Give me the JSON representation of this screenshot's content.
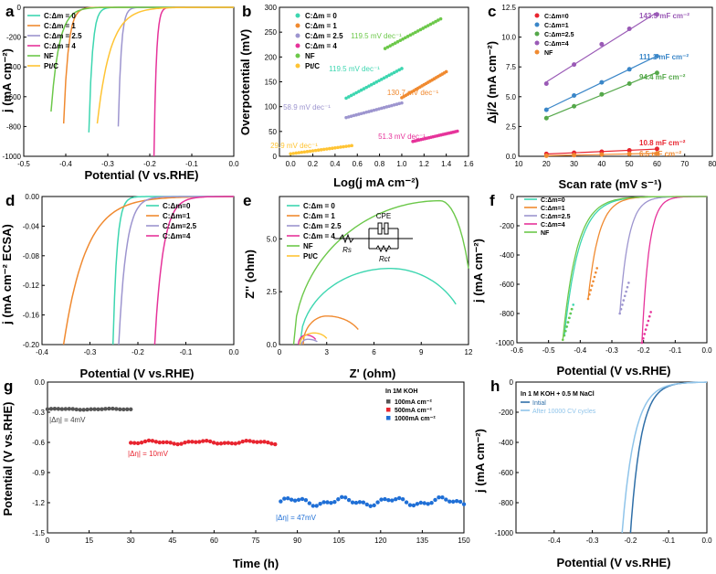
{
  "chart_data": [
    {
      "id": "a",
      "type": "line",
      "panel_label": "a",
      "xlabel": "Potential (V vs.RHE)",
      "ylabel": "j (mA cm⁻²)",
      "xlim": [
        -0.5,
        0.0
      ],
      "ylim": [
        -1000,
        0
      ],
      "xticks": [
        "-0.5",
        "-0.4",
        "-0.3",
        "-0.2",
        "-0.1",
        "0.0"
      ],
      "yticks": [
        "0",
        "-200",
        "-400",
        "-600",
        "-800",
        "-1000"
      ],
      "legend": "top-left",
      "series": [
        {
          "name": "C:Δm = 0",
          "color": "#3dd6b0",
          "curve": [
            -0.345,
            -840,
            0.05,
            6.0
          ]
        },
        {
          "name": "C:Δm = 1",
          "color": "#f08a30",
          "curve": [
            -0.405,
            -780,
            0.06,
            5.5
          ]
        },
        {
          "name": "C:Δm = 2.5",
          "color": "#9d95cf",
          "curve": [
            -0.275,
            -800,
            0.042,
            6.0
          ]
        },
        {
          "name": "C:Δm = 4",
          "color": "#e6339a",
          "curve": [
            -0.19,
            -1000,
            0.034,
            6.2
          ]
        },
        {
          "name": "NF",
          "color": "#6cc84a",
          "curve": [
            -0.435,
            -700,
            0.08,
            4.2
          ]
        },
        {
          "name": "Pt/C",
          "color": "#ffc434",
          "curve": [
            -0.325,
            -780,
            0.1,
            3.2
          ]
        }
      ]
    },
    {
      "id": "b",
      "type": "scatter",
      "panel_label": "b",
      "xlabel": "Log(j mA cm⁻²)",
      "ylabel": "Overpotential (mV)",
      "xlim": [
        -0.1,
        1.6
      ],
      "ylim": [
        0,
        300
      ],
      "xticks": [
        "0.0",
        "0.2",
        "0.4",
        "0.6",
        "0.8",
        "1.0",
        "1.2",
        "1.4",
        "1.6"
      ],
      "yticks": [
        "0",
        "50",
        "100",
        "150",
        "200",
        "250",
        "300"
      ],
      "legend": "top-left",
      "series": [
        {
          "name": "C:Δm = 0",
          "color": "#3dd6b0",
          "x0": 0.5,
          "x1": 1.0,
          "y0": 117,
          "slope": 119.5,
          "annotation": "119.5 mV dec⁻¹"
        },
        {
          "name": "C:Δm = 1",
          "color": "#f08a30",
          "x0": 1.0,
          "x1": 1.4,
          "y0": 118,
          "slope": 130.7,
          "annotation": "130.7 mV dec⁻¹"
        },
        {
          "name": "C:Δm = 2.5",
          "color": "#9d95cf",
          "x0": 0.5,
          "x1": 1.0,
          "y0": 78,
          "slope": 58.9,
          "annotation": "58.9 mV dec⁻¹"
        },
        {
          "name": "C:Δm = 4",
          "color": "#e6339a",
          "x0": 1.1,
          "x1": 1.5,
          "y0": 30,
          "slope": 51.3,
          "annotation": "51.3 mV dec⁻¹"
        },
        {
          "name": "NF",
          "color": "#6cc84a",
          "x0": 0.85,
          "x1": 1.35,
          "y0": 217,
          "slope": 119.5,
          "annotation": "119.5 mV dec⁻¹"
        },
        {
          "name": "Pt/C",
          "color": "#ffc434",
          "x0": 0.0,
          "x1": 0.55,
          "y0": 5,
          "slope": 29.9,
          "annotation": "29.9 mV dec⁻¹"
        }
      ]
    },
    {
      "id": "c",
      "type": "scatter",
      "panel_label": "c",
      "xlabel": "Scan rate (mV s⁻¹)",
      "ylabel": "Δj/2 (mA cm⁻²)",
      "xlim": [
        10,
        80
      ],
      "ylim": [
        0,
        12.5
      ],
      "xticks": [
        "10",
        "20",
        "30",
        "40",
        "50",
        "60",
        "70",
        "80"
      ],
      "yticks": [
        "0.0",
        "2.5",
        "5.0",
        "7.5",
        "10.0",
        "12.5"
      ],
      "legend": "top-left",
      "x": [
        20,
        30,
        40,
        50,
        60
      ],
      "series": [
        {
          "name": "C:Δm=0",
          "color": "#e8242f",
          "values": [
            0.2,
            0.3,
            0.38,
            0.5,
            0.62
          ],
          "label": "10.8 mF cm⁻²"
        },
        {
          "name": "C:Δm=1",
          "color": "#3a86c8",
          "values": [
            3.9,
            5.1,
            6.2,
            7.3,
            8.4
          ],
          "label": "111.1 mF cm⁻²"
        },
        {
          "name": "C:Δm=2.5",
          "color": "#55a84a",
          "values": [
            3.2,
            4.2,
            5.2,
            6.1,
            7.0
          ],
          "label": "94.4 mF cm⁻²"
        },
        {
          "name": "C:Δm=4",
          "color": "#9a5ab6",
          "values": [
            6.1,
            7.7,
            9.4,
            10.7,
            11.9
          ],
          "label": "143.5 mF cm⁻²"
        },
        {
          "name": "NF",
          "color": "#f08a30",
          "values": [
            0.05,
            0.1,
            0.15,
            0.2,
            0.25
          ],
          "label": "6.5 mF cm⁻²"
        }
      ]
    },
    {
      "id": "d",
      "type": "line",
      "panel_label": "d",
      "xlabel": "Potential (V vs.RHE)",
      "ylabel": "j (mA cm⁻² ECSA)",
      "xlim": [
        -0.4,
        0.0
      ],
      "ylim": [
        -0.2,
        0.0
      ],
      "xticks": [
        "-0.4",
        "-0.3",
        "-0.2",
        "-0.1",
        "0.0"
      ],
      "yticks": [
        "0.00",
        "-0.04",
        "-0.08",
        "-0.12",
        "-0.16",
        "-0.20"
      ],
      "legend": "top-right",
      "series": [
        {
          "name": "C:Δm=0",
          "color": "#3dd6b0",
          "curve": [
            -0.252,
            -0.2,
            0.05,
            6.0
          ]
        },
        {
          "name": "C:Δm=1",
          "color": "#f08a30",
          "curve": [
            -0.355,
            -0.2,
            0.14,
            3.0
          ]
        },
        {
          "name": "C:Δm=2.5",
          "color": "#9d95cf",
          "curve": [
            -0.24,
            -0.2,
            0.07,
            4.5
          ]
        },
        {
          "name": "C:Δm=4",
          "color": "#e6339a",
          "curve": [
            -0.165,
            -0.2,
            0.08,
            4.5
          ]
        }
      ]
    },
    {
      "id": "e",
      "type": "scatter",
      "panel_label": "e",
      "xlabel": "Z' (ohm)",
      "ylabel": "Z'' (ohm)",
      "xlim": [
        0,
        12
      ],
      "ylim": [
        0,
        7
      ],
      "xticks": [
        "0",
        "3",
        "6",
        "9",
        "12"
      ],
      "yticks": [
        "0.0",
        "2.5",
        "5.0"
      ],
      "legend": "top-left",
      "circuit_labels": [
        "CPE",
        "Rs",
        "Rct"
      ],
      "series": [
        {
          "name": "C:Δm = 0",
          "color": "#3dd6b0",
          "arc": [
            1.3,
            11.2,
            3.6,
            7.0
          ]
        },
        {
          "name": "C:Δm = 1",
          "color": "#f08a30",
          "arc": [
            1.5,
            5.0,
            1.35,
            3.0
          ]
        },
        {
          "name": "C:Δm = 2.5",
          "color": "#9d95cf",
          "arc": [
            1.4,
            2.4,
            0.25,
            1.8
          ]
        },
        {
          "name": "C:Δm = 4",
          "color": "#e6339a",
          "arc": [
            1.2,
            2.3,
            0.45,
            1.7
          ]
        },
        {
          "name": "NF",
          "color": "#6cc84a",
          "arc": [
            0.9,
            12,
            6.8,
            10.2
          ]
        },
        {
          "name": "Pt/C",
          "color": "#ffc434",
          "arc": [
            1.3,
            3.0,
            0.55,
            2.2
          ]
        }
      ]
    },
    {
      "id": "f",
      "type": "line",
      "panel_label": "f",
      "xlabel": "Potential (V vs.RHE)",
      "ylabel": "j (mA cm⁻²)",
      "xlim": [
        -0.6,
        0.0
      ],
      "ylim": [
        -1000,
        0
      ],
      "xticks": [
        "-0.6",
        "-0.5",
        "-0.4",
        "-0.3",
        "-0.2",
        "-0.1",
        "0.0"
      ],
      "yticks": [
        "0",
        "-200",
        "-400",
        "-600",
        "-800",
        "-1000"
      ],
      "legend": "top-left",
      "series": [
        {
          "name": "C:Δm=0",
          "color": "#3dd6b0",
          "curve": [
            -0.45,
            -950,
            0.14,
            3.0
          ]
        },
        {
          "name": "C:Δm=1",
          "color": "#f08a30",
          "curve": [
            -0.375,
            -700,
            0.12,
            3.5
          ]
        },
        {
          "name": "C:Δm=2.5",
          "color": "#9d95cf",
          "curve": [
            -0.275,
            -800,
            0.11,
            4.0
          ]
        },
        {
          "name": "C:Δm=4",
          "color": "#e6339a",
          "curve": [
            -0.205,
            -1000,
            0.1,
            4.5
          ]
        },
        {
          "name": "NF",
          "color": "#6cc84a",
          "curve": [
            -0.455,
            -980,
            0.16,
            3.6
          ]
        }
      ]
    },
    {
      "id": "g",
      "type": "scatter",
      "panel_label": "g",
      "xlabel": "Time (h)",
      "ylabel": "Potential (V vs.RHE)",
      "xlim": [
        0,
        150
      ],
      "ylim": [
        -1.5,
        0.0
      ],
      "xticks": [
        "0",
        "15",
        "30",
        "45",
        "60",
        "75",
        "90",
        "105",
        "120",
        "135",
        "150"
      ],
      "yticks": [
        "0.0",
        "-0.3",
        "-0.6",
        "-0.9",
        "-1.2",
        "-1.5"
      ],
      "legend_title": "In 1M KOH",
      "legend": "top-right",
      "series": [
        {
          "name": "100mA cm⁻²",
          "color": "#555555",
          "t0": 0,
          "t1": 30,
          "base": -0.27,
          "amp": 0.004,
          "note": "|Δη| = 4mV"
        },
        {
          "name": "500mA cm⁻²",
          "color": "#e8242f",
          "t0": 30,
          "t1": 82,
          "base": -0.6,
          "amp": 0.012,
          "note": "|Δη| = 10mV"
        },
        {
          "name": "1000mA cm⁻²",
          "color": "#1f6fd6",
          "t0": 84,
          "t1": 150,
          "base": -1.19,
          "amp": 0.03,
          "note": "|Δη| = 47mV"
        }
      ]
    },
    {
      "id": "h",
      "type": "line",
      "panel_label": "h",
      "xlabel": "Potential (V vs.RHE)",
      "ylabel": "j (mA cm⁻²)",
      "xlim": [
        -0.5,
        0.0
      ],
      "ylim": [
        -1000,
        0
      ],
      "xticks": [
        "-0.4",
        "-0.3",
        "-0.2",
        "-0.1",
        "0.0"
      ],
      "yticks": [
        "0",
        "-200",
        "-400",
        "-600",
        "-800",
        "-1000"
      ],
      "legend_title": "In 1 M KOH + 0.5 M NaCl",
      "legend": "top-left",
      "series": [
        {
          "name": "Intial",
          "color": "#2f6fa8",
          "curve": [
            -0.2,
            -1000,
            0.1,
            3.6
          ]
        },
        {
          "name": "After 10000 CV cycles",
          "color": "#8fc4ea",
          "curve": [
            -0.222,
            -1000,
            0.11,
            3.4
          ]
        }
      ]
    }
  ]
}
